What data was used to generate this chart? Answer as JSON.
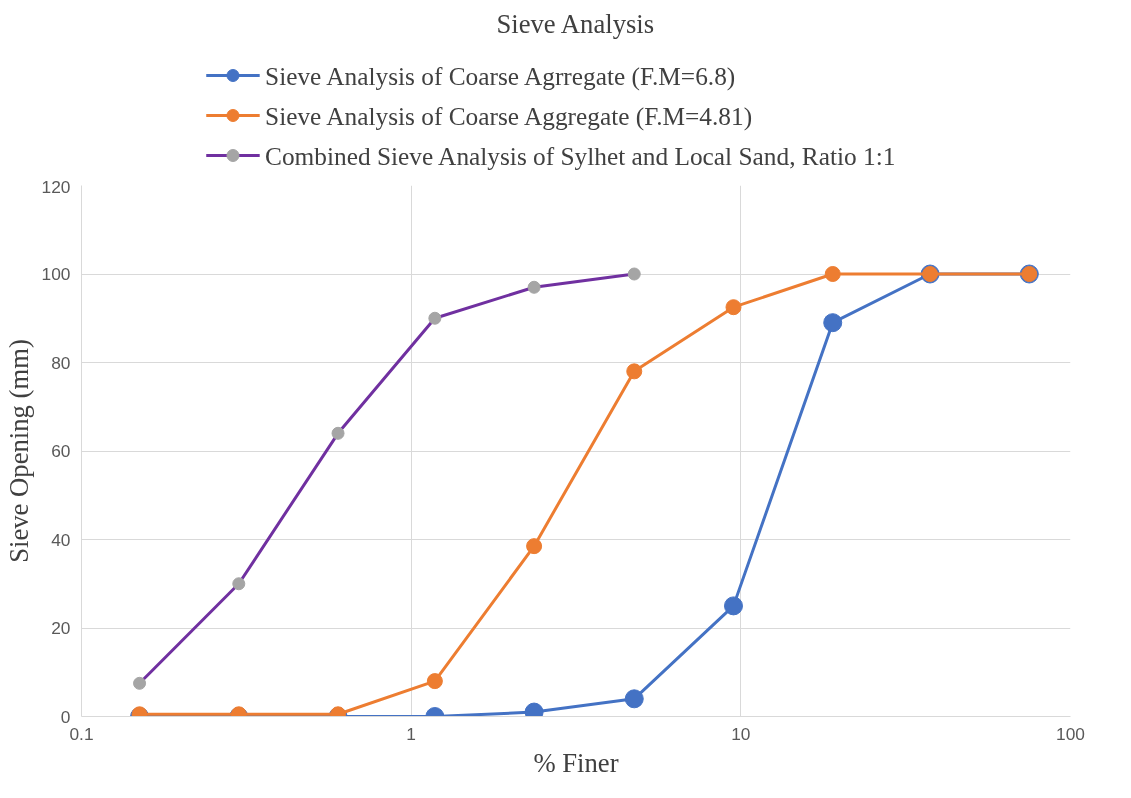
{
  "chart_data": {
    "type": "line",
    "title": "Sieve Analysis",
    "xlabel": "% Finer",
    "ylabel": "Sieve Opening (mm)",
    "log": "x",
    "xlim": [
      0.1,
      100
    ],
    "xticks": [
      0.1,
      1,
      10,
      100
    ],
    "ylim": [
      0,
      120
    ],
    "yticks": [
      0,
      20,
      40,
      60,
      80,
      100,
      120
    ],
    "grid": true,
    "legend": "top",
    "marker": "circle",
    "line_style": "solid",
    "series": [
      {
        "name": "Sieve Analysis of Coarse Agrregate (F.M=6.8)",
        "color": "#4472c4",
        "x": [
          0.15,
          0.3,
          0.6,
          1.18,
          2.36,
          4.75,
          9.5,
          19,
          37.5,
          75
        ],
        "values": [
          0,
          0,
          0,
          0,
          1,
          4,
          25,
          89,
          100,
          100
        ]
      },
      {
        "name": "Sieve Analysis of Coarse Aggregate (F.M=4.81)",
        "color": "#ed7d31",
        "x": [
          0.15,
          0.3,
          0.6,
          1.18,
          2.36,
          4.75,
          9.5,
          19,
          37.5,
          75
        ],
        "values": [
          0.5,
          0.5,
          0.5,
          8,
          38.5,
          78,
          92.5,
          100,
          100,
          100
        ]
      },
      {
        "name": "Combined Sieve Analysis of Sylhet and Local Sand, Ratio 1:1",
        "color": "#7030a0",
        "colors": [
          "#a5a5a5",
          "#a5a5a5",
          "#a5a5a5",
          "#a5a5a5",
          "#a5a5a5",
          "#a5a5a5"
        ],
        "x": [
          0.15,
          0.3,
          0.6,
          1.18,
          2.36,
          4.75
        ],
        "values": [
          7.5,
          30,
          64,
          90,
          97,
          100
        ]
      }
    ]
  }
}
